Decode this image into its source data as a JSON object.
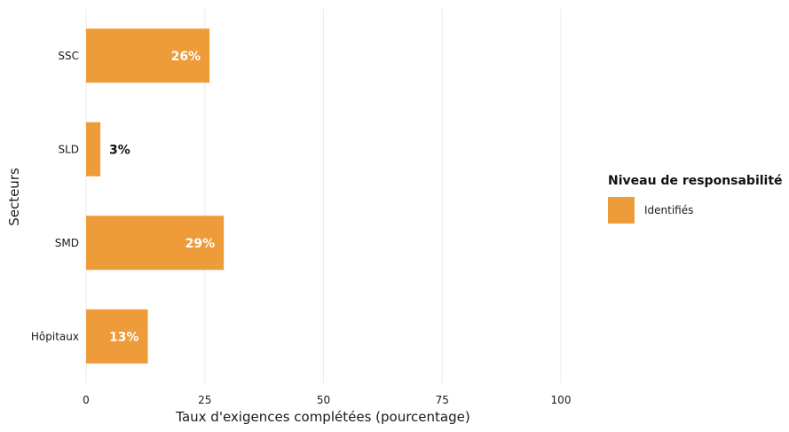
{
  "chart_data": {
    "type": "bar",
    "orientation": "horizontal",
    "categories": [
      "SSC",
      "SLD",
      "SMD",
      "Hôpitaux"
    ],
    "series": [
      {
        "name": "Identifiés",
        "values": [
          26,
          3,
          29,
          13
        ],
        "labels": [
          "26%",
          "3%",
          "29%",
          "13%"
        ],
        "color": "#EE9B3A"
      }
    ],
    "xlabel": "Taux d'exigences complétées (pourcentage)",
    "ylabel": "Secteurs",
    "xlim": [
      0,
      100
    ],
    "xticks": [
      0,
      25,
      50,
      75,
      100
    ],
    "grid": true,
    "legend": {
      "title": "Niveau de responsabilité",
      "placement": "right",
      "entries": [
        "Identifiés"
      ]
    }
  }
}
